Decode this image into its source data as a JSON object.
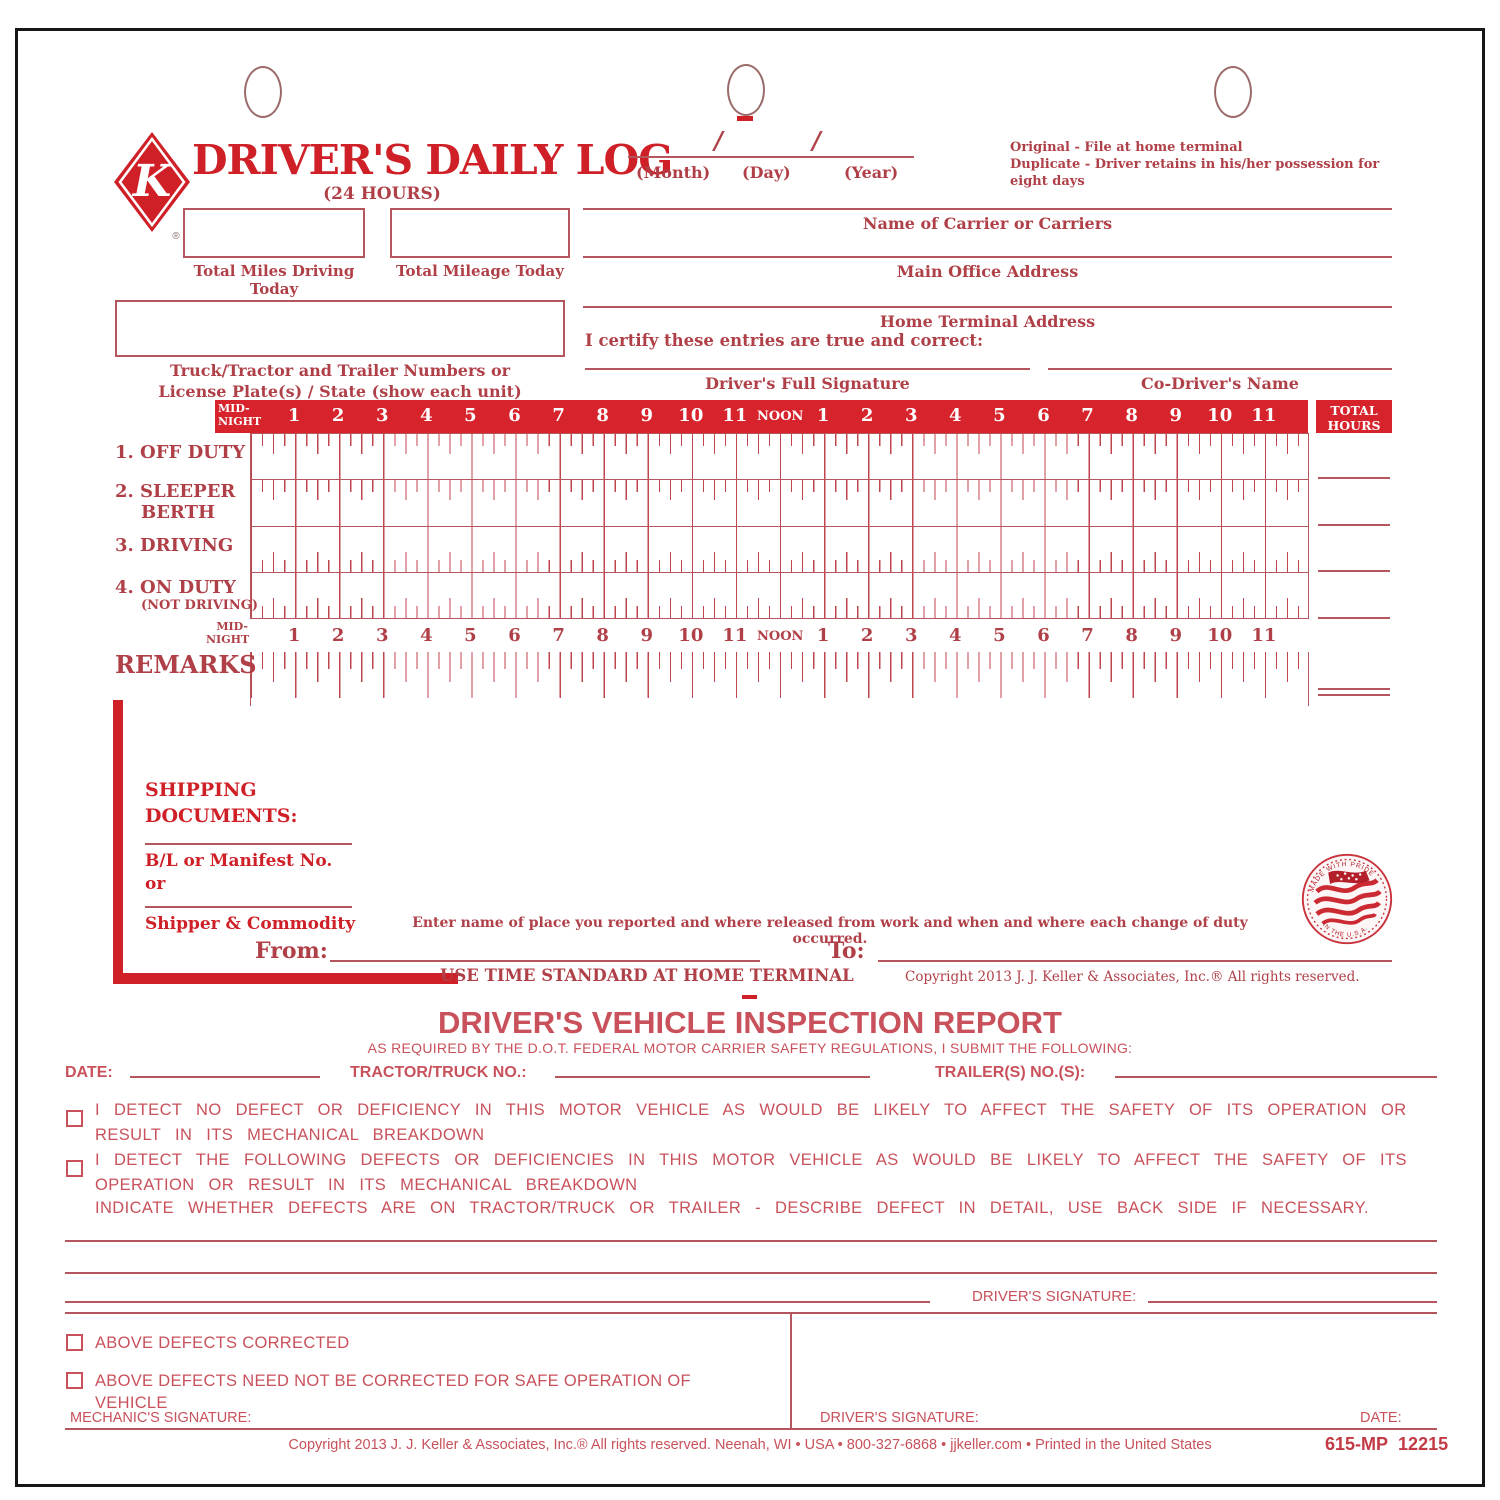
{
  "header": {
    "logo_letter": "K",
    "logo_reg": "®",
    "title": "DRIVER'S DAILY LOG",
    "subtitle": "(24 HOURS)",
    "date_labels": {
      "month": "(Month)",
      "day": "(Day)",
      "year": "(Year)",
      "slash": "/"
    },
    "copies_note_line1": "Original - File at home terminal",
    "copies_note_line2": "Duplicate - Driver retains in his/her possession for eight days"
  },
  "info_fields": {
    "total_miles_label": "Total Miles Driving Today",
    "total_mileage_label": "Total Mileage Today",
    "carrier_label": "Name of Carrier or Carriers",
    "office_label": "Main Office Address",
    "truck_label_line1": "Truck/Tractor and Trailer Numbers or",
    "truck_label_line2": "License Plate(s) / State (show each unit)",
    "home_terminal_label": "Home Terminal Address",
    "certify_text": "I certify these entries are true and correct:",
    "driver_signature_label": "Driver's Full Signature",
    "codriver_label": "Co-Driver's Name"
  },
  "grid": {
    "hours": [
      "MID-NIGHT",
      "1",
      "2",
      "3",
      "4",
      "5",
      "6",
      "7",
      "8",
      "9",
      "10",
      "11",
      "NOON",
      "1",
      "2",
      "3",
      "4",
      "5",
      "6",
      "7",
      "8",
      "9",
      "10",
      "11"
    ],
    "total_hours_label": "TOTAL HOURS",
    "rows": [
      {
        "num": "1.",
        "lines": [
          "OFF DUTY"
        ]
      },
      {
        "num": "2.",
        "lines": [
          "SLEEPER",
          "BERTH"
        ]
      },
      {
        "num": "3.",
        "lines": [
          "DRIVING"
        ]
      },
      {
        "num": "4.",
        "lines": [
          "ON DUTY",
          "(NOT DRIVING)"
        ]
      }
    ],
    "remarks_label": "REMARKS"
  },
  "shipping": {
    "heading_line1": "SHIPPING",
    "heading_line2": "DOCUMENTS:",
    "bl_label": "B/L or Manifest No.",
    "or_label": "or",
    "shipper_label": "Shipper & Commodity",
    "helper_text": "Enter name of place you reported and where released from work and when and where each change of duty occurred.",
    "from_label": "From:",
    "to_label": "To:",
    "use_time_text": "USE TIME STANDARD AT HOME TERMINAL",
    "copyright": "Copyright 2013 J. J. Keller & Associates, Inc.® All rights reserved."
  },
  "seal": {
    "arc_top": "MADE WITH PRIDE",
    "arc_bottom": "IN THE U.S.A."
  },
  "dvir": {
    "title": "DRIVER'S VEHICLE INSPECTION REPORT",
    "subtitle": "AS REQUIRED BY THE D.O.T. FEDERAL MOTOR CARRIER SAFETY REGULATIONS, I SUBMIT THE FOLLOWING:",
    "date_label": "DATE:",
    "tractor_label": "TRACTOR/TRUCK NO.:",
    "trailer_label": "TRAILER(S) NO.(S):",
    "no_defect_text": "I DETECT NO DEFECT OR DEFICIENCY IN THIS MOTOR VEHICLE AS WOULD BE LIKELY TO AFFECT THE SAFETY OF ITS OPERATION OR RESULT IN ITS MECHANICAL BREAKDOWN",
    "defect_text": "I DETECT THE FOLLOWING DEFECTS OR DEFICIENCIES IN THIS MOTOR VEHICLE AS WOULD BE LIKELY TO AFFECT THE SAFETY OF ITS OPERATION OR RESULT IN ITS MECHANICAL BREAKDOWN",
    "indicate_text": "INDICATE WHETHER DEFECTS ARE ON TRACTOR/TRUCK OR TRAILER - DESCRIBE DEFECT IN DETAIL, USE BACK SIDE IF NECESSARY.",
    "driver_signature_label": "DRIVER'S SIGNATURE:",
    "above_corrected": "ABOVE DEFECTS CORRECTED",
    "above_not_needed": "ABOVE DEFECTS NEED NOT BE CORRECTED FOR SAFE OPERATION OF VEHICLE",
    "mechanic_signature_label": "MECHANIC'S SIGNATURE:",
    "driver_signature_label2": "DRIVER'S SIGNATURE:",
    "date_label2": "DATE:"
  },
  "footer": {
    "copyright": "Copyright 2013 J. J. Keller & Associates, Inc.® All rights reserved. Neenah, WI • USA • 800-327-6868 • jjkeller.com • Printed in the United States",
    "form_number_left": "615-MP",
    "form_number_right": "12215"
  },
  "colors": {
    "form_red": "#cf2027",
    "band_red": "#d7232b",
    "label_maroon": "#b04048"
  }
}
